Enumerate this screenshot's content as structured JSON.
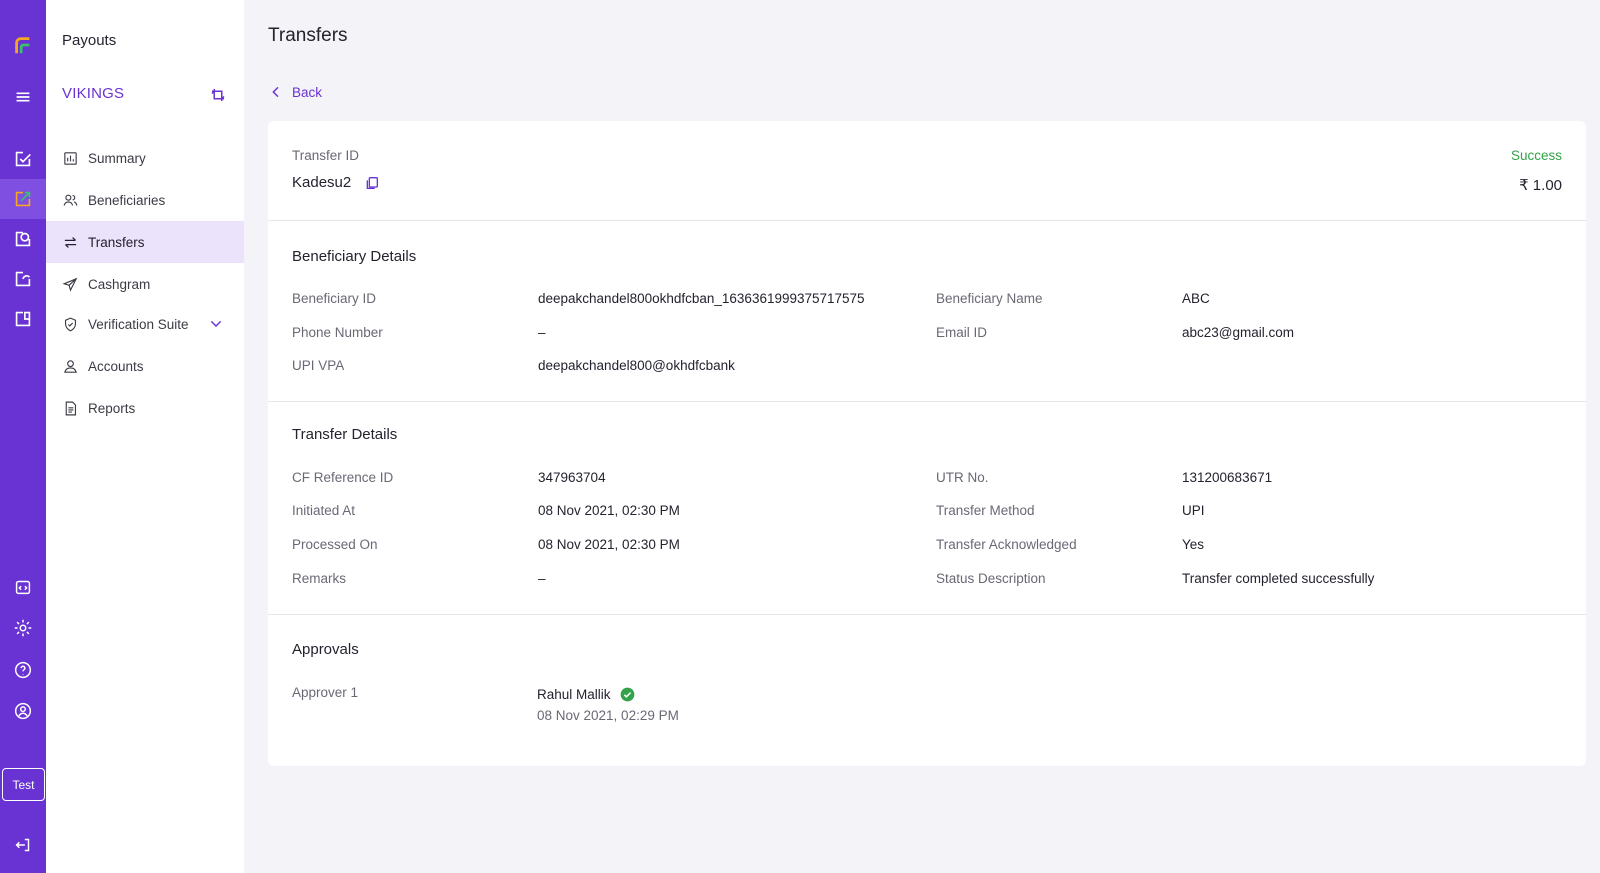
{
  "rail": {
    "icons": [
      "logo-icon",
      "menu-icon",
      "payment-gateway-icon",
      "payouts-icon",
      "subscriptions-icon",
      "auto-collect-icon",
      "vendor-payments-icon",
      "developers-icon",
      "settings-icon",
      "help-icon",
      "profile-icon",
      "logout-icon"
    ],
    "mode_label": "Test",
    "colors": {
      "rail_bg": "#6933d3",
      "active": "#7e4fe0"
    }
  },
  "nav": {
    "product": "Payouts",
    "merchant": "VIKINGS",
    "items": [
      {
        "label": "Summary",
        "icon": "bar-chart-icon"
      },
      {
        "label": "Beneficiaries",
        "icon": "users-icon"
      },
      {
        "label": "Transfers",
        "icon": "transfer-arrows-icon",
        "active": true
      },
      {
        "label": "Cashgram",
        "icon": "send-icon"
      },
      {
        "label": "Verification Suite",
        "icon": "shield-check-icon",
        "expandable": true
      },
      {
        "label": "Accounts",
        "icon": "user-icon"
      },
      {
        "label": "Reports",
        "icon": "document-icon"
      }
    ]
  },
  "page": {
    "title": "Transfers",
    "back_label": "Back"
  },
  "transfer": {
    "id_label": "Transfer ID",
    "id": "Kadesu2",
    "status": "Success",
    "amount": "₹ 1.00",
    "status_color": "#33a24a"
  },
  "beneficiary": {
    "heading": "Beneficiary Details",
    "fields": [
      {
        "label": "Beneficiary ID",
        "value": "deepakchandel800okhdfcban_1636361999375717575"
      },
      {
        "label": "Beneficiary Name",
        "value": "ABC"
      },
      {
        "label": "Phone Number",
        "value": "–"
      },
      {
        "label": "Email ID",
        "value": "abc23@gmail.com"
      },
      {
        "label": "UPI VPA",
        "value": "deepakchandel800@okhdfcbank"
      }
    ]
  },
  "details": {
    "heading": "Transfer Details",
    "fields": [
      {
        "label": "CF Reference ID",
        "value": "347963704"
      },
      {
        "label": "UTR No.",
        "value": "131200683671"
      },
      {
        "label": "Initiated At",
        "value": "08 Nov 2021, 02:30 PM"
      },
      {
        "label": "Transfer Method",
        "value": "UPI"
      },
      {
        "label": "Processed On",
        "value": "08 Nov 2021, 02:30 PM"
      },
      {
        "label": "Transfer Acknowledged",
        "value": "Yes"
      },
      {
        "label": "Remarks",
        "value": "–"
      },
      {
        "label": "Status Description",
        "value": "Transfer completed successfully"
      }
    ]
  },
  "approvals": {
    "heading": "Approvals",
    "label": "Approver 1",
    "name": "Rahul Mallik",
    "time": "08 Nov 2021, 02:29 PM"
  }
}
